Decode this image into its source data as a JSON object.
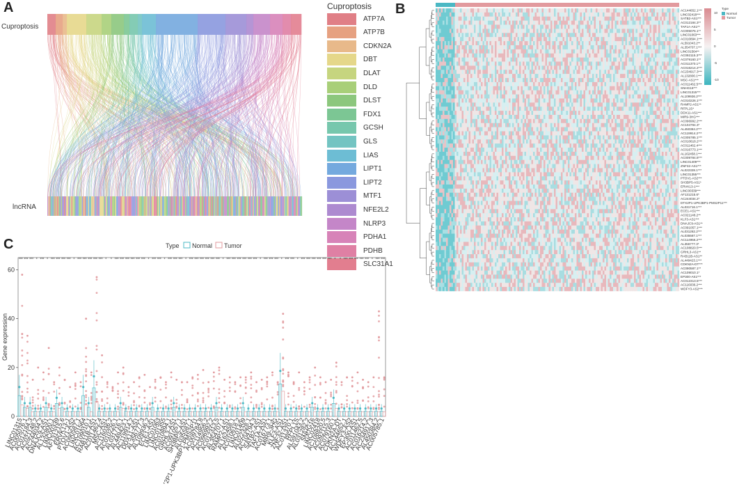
{
  "figure": {
    "panel_a": {
      "letter": "A",
      "top_label": "Cuproptosis",
      "bottom_label": "lncRNA",
      "legend_title": "Cuproptosis",
      "legend": [
        {
          "name": "ATP7A",
          "color": "#e07f86"
        },
        {
          "name": "ATP7B",
          "color": "#e6a181"
        },
        {
          "name": "CDKN2A",
          "color": "#e8b98a"
        },
        {
          "name": "DBT",
          "color": "#e5d78a"
        },
        {
          "name": "DLAT",
          "color": "#c6d57f"
        },
        {
          "name": "DLD",
          "color": "#a8cf79"
        },
        {
          "name": "DLST",
          "color": "#8cc77d"
        },
        {
          "name": "FDX1",
          "color": "#7cc694"
        },
        {
          "name": "GCSH",
          "color": "#77c7ad"
        },
        {
          "name": "GLS",
          "color": "#73c4c2"
        },
        {
          "name": "LIAS",
          "color": "#6dbdd4"
        },
        {
          "name": "LIPT1",
          "color": "#74a9de"
        },
        {
          "name": "LIPT2",
          "color": "#8a98de"
        },
        {
          "name": "MTF1",
          "color": "#9c8fd6"
        },
        {
          "name": "NFE2L2",
          "color": "#ad8ad0"
        },
        {
          "name": "NLRP3",
          "color": "#c486c8"
        },
        {
          "name": "PDHA1",
          "color": "#d783b8"
        },
        {
          "name": "PDHB",
          "color": "#df80a4"
        },
        {
          "name": "SLC31A1",
          "color": "#e27e8f"
        }
      ]
    },
    "panel_b": {
      "letter": "B",
      "legend_title": "Type",
      "legend_items": [
        "Normal",
        "Tumor"
      ],
      "scale_ticks": [
        "10",
        "5",
        "0",
        "-5",
        "-10"
      ],
      "genes": [
        "AC144652.1***",
        "LINC02418***",
        "SATB2-AS1***",
        "AC012184.3**",
        "TAF1A-AS1**",
        "AC005076.1**",
        "LINC01063***",
        "AC010894.1***",
        "AL591043.2**",
        "AL354707.1***",
        "LINC01564**",
        "AC092115.3***",
        "AC079160.1**",
        "AC011370.1**",
        "AC016214.2***",
        "AC234917.3***",
        "AL132800.1***",
        "MSC-AS1***",
        "AC011462.5***",
        "SNHG16***",
        "LINC01315***",
        "AL109936.2***",
        "AC010226.1***",
        "RAMP2-AS1**",
        "RFPL1S*",
        "DDX11-AS1***",
        "MIR9-3HG***",
        "AC096992.2***",
        "AC104794.3*",
        "AL450384.2***",
        "AC119914.2***",
        "AC005785.1***",
        "AC010618.2***",
        "AC011462.4***",
        "AC016773.1***",
        "AL162458.1***",
        "AC009784.8***",
        "LINC01409***",
        "ZNF32-AS1***",
        "AL022328.1***",
        "LINC01355***",
        "PTOV1-AS2***",
        "SH3BP5-AS1*",
        "ERVK13-1***",
        "LINC00339***",
        "AF131215.6*",
        "AC244034.2*",
        "DTX2P1-UPK3BP1-PMS2P11***",
        "AL031716.1***",
        "ECE1-AS1***",
        "AC021148.2**",
        "KLF3-AS1***",
        "DNAJC9-AS1**",
        "AC091057.1***",
        "AL031282.2***",
        "AL035587.1***",
        "AC114956.2***",
        "AL356777.3*",
        "AC108820.5***",
        "GRHL3-AS1**",
        "RAB11B-AS1**",
        "AL449423.1***",
        "CDKN2A-DT***",
        "AC090587.1**",
        "AC109010.1*",
        "EP300-AS1***",
        "AC012313.5***",
        "AC116036.2***",
        "WDFY3-AS2***"
      ]
    },
    "panel_c": {
      "letter": "C",
      "legend_title": "Type",
      "legend_items": [
        "Normal",
        "Tumor"
      ],
      "ylabel": "Gene expression",
      "yticks": [
        "0",
        "20",
        "40",
        "60"
      ],
      "genes": [
        "LINC01315",
        "AC005076.1",
        "AC012184.3",
        "AC021148.2",
        "AC244034.2",
        "DNAJC9-AS1",
        "AL132800.1",
        "LINC00339",
        "AF131215.6",
        "ERVK13-1",
        "PTOV1-AS2",
        "AC090587.1",
        "LINC01564",
        "AC109010.1",
        "RAB11B-AS1",
        "AC011462.4",
        "MSC-AS1",
        "AC116036.2",
        "AC010226.1",
        "AL031716.1",
        "AL449423.1",
        "AC119914.2",
        "DDX11-AS1",
        "AL356777.3",
        "AL109936.2",
        "ECE1-AS1",
        "LINC01063",
        "LINC01355",
        "AC010894.1",
        "GRHL3-AS1",
        "AC091057.1",
        "SH3BP5-AS1",
        "AL035587.1",
        "DTX2P1-UPK3BP1-PMS2P11",
        "AC009784.8",
        "AC114956.2",
        "AC096992.2",
        "AC012313.5",
        "AL354707.1",
        "RAMP2-AS1",
        "AL162458.1",
        "AC010618.2",
        "LINC01409",
        "AL022328.1",
        "AC104794.3",
        "SATB2-AS1",
        "TAF1A-AS1",
        "AC016773.1",
        "MIR9-3HG",
        "KLF3-AS1",
        "ZNF32-AS1",
        "AC011370.1",
        "RFPL1S",
        "AL591043.2",
        "AL031282.2",
        "SNHG16",
        "LINC02418",
        "AC108820.5",
        "AC092115.3",
        "AC079160.1",
        "CDKN2A-DT",
        "AC144652.1",
        "WDFY3-AS2",
        "EP300-AS1",
        "AC011462.5",
        "AC016214.2",
        "AC234917.3",
        "AL450384.2",
        "AC005785.1"
      ]
    }
  },
  "chart_data": {
    "type": "box",
    "title": "",
    "xlabel": "",
    "ylabel": "Gene expression",
    "ylim": [
      0,
      65
    ],
    "series": [
      {
        "name": "Normal",
        "color": "#4bb8c4"
      },
      {
        "name": "Tumor",
        "color": "#e29a9e"
      }
    ],
    "medians_normal": [
      5,
      2,
      2,
      1,
      1,
      2,
      1,
      3,
      2,
      1,
      1,
      1,
      5,
      2,
      7,
      1,
      1,
      1,
      1,
      2,
      1,
      1,
      1,
      1,
      1,
      2,
      1,
      1,
      1,
      2,
      1,
      1,
      1,
      1,
      1,
      1,
      1,
      2,
      1,
      1,
      1,
      1,
      2,
      1,
      1,
      1,
      1,
      1,
      1,
      8,
      1,
      1,
      1,
      1,
      1,
      2,
      1,
      1,
      1,
      3,
      1,
      1,
      1,
      1,
      1,
      1,
      1,
      1,
      1
    ],
    "medians_tumor": [
      3,
      2,
      1,
      1,
      1,
      1,
      1,
      2,
      1,
      1,
      1,
      1,
      3,
      1,
      4,
      1,
      1,
      1,
      1,
      2,
      1,
      1,
      1,
      1,
      1,
      1,
      1,
      1,
      1,
      1,
      1,
      1,
      1,
      1,
      1,
      1,
      1,
      1,
      1,
      1,
      1,
      1,
      1,
      1,
      1,
      1,
      1,
      1,
      1,
      7,
      1,
      1,
      1,
      1,
      1,
      1,
      1,
      1,
      1,
      2,
      1,
      1,
      1,
      1,
      1,
      1,
      1,
      1,
      1
    ],
    "max_outlier_tumor": [
      58,
      33,
      15,
      20,
      18,
      28,
      14,
      20,
      15,
      12,
      18,
      14,
      40,
      18,
      57,
      25,
      14,
      12,
      18,
      20,
      12,
      14,
      16,
      17,
      12,
      15,
      16,
      14,
      18,
      15,
      14,
      14,
      16,
      17,
      19,
      14,
      18,
      20,
      15,
      16,
      14,
      16,
      16,
      18,
      14,
      15,
      16,
      18,
      14,
      42,
      18,
      14,
      18,
      14,
      16,
      20,
      16,
      14,
      15,
      22,
      14,
      16,
      16,
      18,
      15,
      14,
      16,
      43,
      16
    ]
  }
}
